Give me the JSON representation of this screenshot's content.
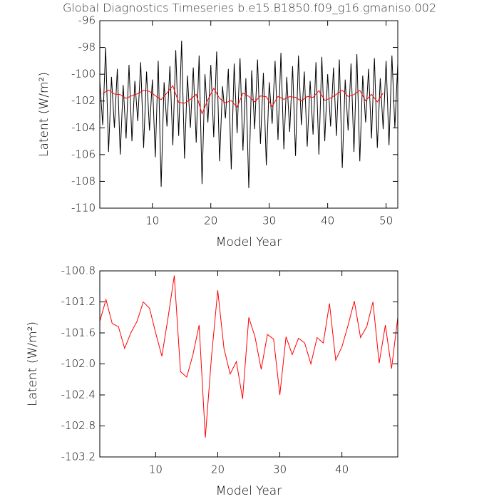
{
  "chart_data": [
    {
      "type": "line",
      "title": "Global Diagnostics Timeseries b.e15.B1850.f09_g16.gmaniso.002",
      "xlabel": "Model Year",
      "ylabel": "Latent (W/m²)",
      "xlim": [
        1,
        52
      ],
      "ylim": [
        -110,
        -96
      ],
      "xticks": [
        10,
        20,
        30,
        40,
        50
      ],
      "yticks": [
        -110,
        -108,
        -106,
        -104,
        -102,
        -100,
        -98,
        -96
      ],
      "series": [
        {
          "color": "#000000",
          "x": [
            1,
            1.5,
            2,
            2.5,
            3,
            3.5,
            4,
            4.5,
            5,
            5.5,
            6,
            6.5,
            7,
            7.5,
            8,
            8.5,
            9,
            9.5,
            10,
            10.5,
            11,
            11.5,
            12,
            12.5,
            13,
            13.5,
            14,
            14.5,
            15,
            15.5,
            16,
            16.5,
            17,
            17.5,
            18,
            18.5,
            19,
            19.5,
            20,
            20.5,
            21,
            21.5,
            22,
            22.5,
            23,
            23.5,
            24,
            24.5,
            25,
            25.5,
            26,
            26.5,
            27,
            27.5,
            28,
            28.5,
            29,
            29.5,
            30,
            30.5,
            31,
            31.5,
            32,
            32.5,
            33,
            33.5,
            34,
            34.5,
            35,
            35.5,
            36,
            36.5,
            37,
            37.5,
            38,
            38.5,
            39,
            39.5,
            40,
            40.5,
            41,
            41.5,
            42,
            42.5,
            43,
            43.5,
            44,
            44.5,
            45,
            45.5,
            46,
            46.5,
            47,
            47.5,
            48,
            48.5,
            49,
            49.5,
            50,
            50.5,
            51,
            51.5,
            52
          ],
          "values": [
            -100.5,
            -103.8,
            -98.0,
            -105.8,
            -100.2,
            -104.0,
            -99.6,
            -106.0,
            -100.8,
            -104.8,
            -99.3,
            -105.0,
            -100.5,
            -103.5,
            -99.1,
            -105.5,
            -99.8,
            -104.2,
            -100.4,
            -106.2,
            -99.0,
            -108.4,
            -100.6,
            -103.9,
            -99.4,
            -105.3,
            -98.2,
            -104.6,
            -97.5,
            -106.3,
            -100.1,
            -104.0,
            -99.5,
            -105.1,
            -98.6,
            -108.2,
            -100.0,
            -103.6,
            -99.3,
            -104.7,
            -98.3,
            -106.5,
            -100.9,
            -103.3,
            -99.6,
            -107.1,
            -99.2,
            -104.4,
            -98.8,
            -105.7,
            -100.3,
            -108.5,
            -99.7,
            -104.1,
            -98.9,
            -105.2,
            -99.9,
            -106.8,
            -100.6,
            -103.7,
            -99.0,
            -104.9,
            -98.4,
            -105.6,
            -100.2,
            -104.3,
            -99.4,
            -106.1,
            -98.6,
            -103.8,
            -99.8,
            -105.4,
            -100.5,
            -104.5,
            -99.1,
            -106.0,
            -98.7,
            -105.0,
            -100.0,
            -103.9,
            -99.5,
            -104.6,
            -98.9,
            -107.0,
            -100.4,
            -104.2,
            -99.2,
            -105.8,
            -98.5,
            -106.5,
            -100.1,
            -103.6,
            -99.6,
            -104.8,
            -98.8,
            -105.5,
            -100.3,
            -104.1,
            -99.0,
            -105.3,
            -98.6,
            -104.0,
            -99.2
          ]
        },
        {
          "color": "#ff0000",
          "x": [
            1.5,
            2.5,
            3.5,
            4.5,
            5.5,
            6.5,
            7.5,
            8.5,
            9.5,
            10.5,
            11.5,
            12.5,
            13.5,
            14.5,
            15.5,
            16.5,
            17.5,
            18.5,
            19.5,
            20.5,
            21.5,
            22.5,
            23.5,
            24.5,
            25.5,
            26.5,
            27.5,
            28.5,
            29.5,
            30.5,
            31.5,
            32.5,
            33.5,
            34.5,
            35.5,
            36.5,
            37.5,
            38.5,
            39.5,
            40.5,
            41.5,
            42.5,
            43.5,
            44.5,
            45.5,
            46.5,
            47.5,
            48.5,
            49.5
          ],
          "values": [
            -101.45,
            -101.17,
            -101.48,
            -101.52,
            -101.8,
            -101.6,
            -101.45,
            -101.2,
            -101.28,
            -101.6,
            -101.9,
            -101.4,
            -100.86,
            -102.1,
            -102.17,
            -101.88,
            -101.5,
            -102.95,
            -101.9,
            -101.05,
            -101.8,
            -102.13,
            -101.97,
            -102.45,
            -101.4,
            -101.65,
            -102.07,
            -101.62,
            -101.68,
            -102.4,
            -101.65,
            -101.88,
            -101.67,
            -101.73,
            -102.0,
            -101.66,
            -101.73,
            -101.22,
            -101.95,
            -101.78,
            -101.5,
            -101.19,
            -101.66,
            -101.52,
            -101.2,
            -101.99,
            -101.5,
            -102.06,
            -101.4
          ]
        }
      ]
    },
    {
      "type": "line",
      "xlabel": "Model Year",
      "ylabel": "Latent (W/m²)",
      "xlim": [
        1,
        49
      ],
      "ylim": [
        -103.2,
        -100.8
      ],
      "xticks": [
        10,
        20,
        30,
        40
      ],
      "yticks": [
        -103.2,
        -102.8,
        -102.4,
        {
          "value": -102,
          "label": "-102.0"
        },
        -101.6,
        -101.2,
        -100.8
      ],
      "series": [
        {
          "color": "#ff0000",
          "x": [
            1,
            2,
            3,
            4,
            5,
            6,
            7,
            8,
            9,
            10,
            11,
            12,
            13,
            14,
            15,
            16,
            17,
            18,
            19,
            20,
            21,
            22,
            23,
            24,
            25,
            26,
            27,
            28,
            29,
            30,
            31,
            32,
            33,
            34,
            35,
            36,
            37,
            38,
            39,
            40,
            41,
            42,
            43,
            44,
            45,
            46,
            47,
            48,
            49
          ],
          "values": [
            -101.45,
            -101.17,
            -101.48,
            -101.52,
            -101.8,
            -101.6,
            -101.45,
            -101.2,
            -101.28,
            -101.6,
            -101.9,
            -101.4,
            -100.86,
            -102.1,
            -102.17,
            -101.88,
            -101.5,
            -102.95,
            -101.9,
            -101.05,
            -101.8,
            -102.13,
            -101.97,
            -102.45,
            -101.4,
            -101.65,
            -102.07,
            -101.62,
            -101.68,
            -102.4,
            -101.65,
            -101.88,
            -101.67,
            -101.73,
            -102.0,
            -101.66,
            -101.73,
            -101.22,
            -101.95,
            -101.78,
            -101.5,
            -101.19,
            -101.66,
            -101.52,
            -101.2,
            -101.99,
            -101.5,
            -102.06,
            -101.4
          ]
        }
      ]
    }
  ]
}
